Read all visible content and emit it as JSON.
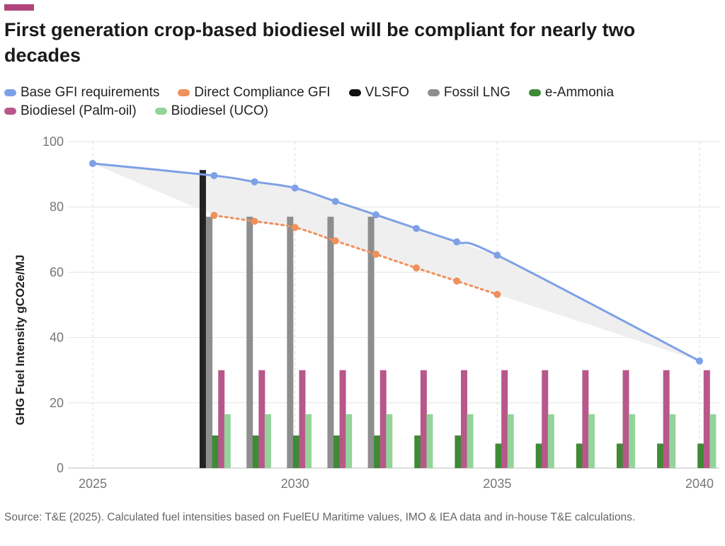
{
  "title": "First generation crop-based biodiesel will be compliant for nearly two decades",
  "source": "Source: T&E (2025). Calculated fuel intensities based on FuelEU Maritime values, IMO & IEA data and in-house T&E calculations.",
  "accent_color": "#b0447a",
  "legend": [
    {
      "label": "Base GFI requirements",
      "color": "#7ea0e6"
    },
    {
      "label": "Direct Compliance GFI",
      "color": "#f0905a"
    },
    {
      "label": "VLSFO",
      "color": "#111111"
    },
    {
      "label": "Fossil LNG",
      "color": "#8e8e8e"
    },
    {
      "label": "e-Ammonia",
      "color": "#3f8a35"
    },
    {
      "label": "Biodiesel (Palm-oil)",
      "color": "#b8588a"
    },
    {
      "label": "Biodiesel (UCO)",
      "color": "#92d49a"
    }
  ],
  "chart_data": {
    "type": "bar",
    "ylabel": "GHG Fuel Intensity gCO2e/MJ",
    "xlabel": "",
    "ylim": [
      0,
      100
    ],
    "yticks": [
      0,
      20,
      40,
      60,
      80,
      100
    ],
    "xlim": [
      2025,
      2040
    ],
    "xticks": [
      2025,
      2030,
      2035,
      2040
    ],
    "grid": true,
    "legend_position": "top",
    "lines": [
      {
        "name": "Base GFI requirements",
        "color": "#7ea0e6",
        "style": "solid",
        "x": [
          2025,
          2028,
          2029,
          2030,
          2031,
          2032,
          2033,
          2034,
          2035,
          2040
        ],
        "y": [
          93.3,
          89.6,
          87.7,
          85.8,
          81.7,
          77.6,
          73.4,
          69.3,
          65.2,
          32.8
        ],
        "markers_x": [
          2025,
          2028,
          2029,
          2030,
          2031,
          2032,
          2033,
          2034,
          2035,
          2040
        ]
      },
      {
        "name": "Direct Compliance GFI",
        "color": "#f0905a",
        "style": "dotted",
        "x": [
          2028,
          2029,
          2030,
          2031,
          2032,
          2033,
          2034,
          2035
        ],
        "y": [
          77.4,
          75.6,
          73.7,
          69.6,
          65.5,
          61.3,
          57.3,
          53.2
        ],
        "markers_x": [
          2028,
          2029,
          2030,
          2031,
          2032,
          2033,
          2034,
          2035
        ]
      }
    ],
    "band": {
      "color": "#ececec",
      "points": [
        [
          2025,
          93.3
        ],
        [
          2028,
          89.6
        ],
        [
          2029,
          87.7
        ],
        [
          2030,
          85.8
        ],
        [
          2031,
          81.7
        ],
        [
          2032,
          77.6
        ],
        [
          2033,
          73.4
        ],
        [
          2034,
          69.3
        ],
        [
          2035,
          65.2
        ],
        [
          2040,
          32.8
        ],
        [
          2035,
          53.2
        ],
        [
          2034,
          57.3
        ],
        [
          2033,
          61.3
        ],
        [
          2032,
          65.5
        ],
        [
          2031,
          69.6
        ],
        [
          2030,
          73.7
        ],
        [
          2029,
          75.6
        ],
        [
          2028,
          77.4
        ]
      ]
    },
    "series": [
      {
        "name": "VLSFO",
        "color": "#222222",
        "x": [
          2027.72
        ],
        "values": [
          91.3
        ]
      },
      {
        "name": "Fossil LNG",
        "color": "#8e8e8e",
        "x": [
          2027.88,
          2028.88,
          2029.88,
          2030.88,
          2031.88
        ],
        "values": [
          77,
          77,
          77,
          77,
          77
        ]
      },
      {
        "name": "e-Ammonia",
        "color": "#3f8a35",
        "x": [
          2028.03,
          2029.03,
          2030.03,
          2031.03,
          2032.03,
          2033.03,
          2034.03,
          2035.03,
          2036.03,
          2037.03,
          2038.03,
          2039.03,
          2040.03
        ],
        "values": [
          10,
          10,
          10,
          10,
          10,
          10,
          10,
          7.5,
          7.5,
          7.5,
          7.5,
          7.5,
          7.5
        ]
      },
      {
        "name": "Biodiesel (Palm-oil)",
        "color": "#b8588a",
        "x": [
          2028.18,
          2029.18,
          2030.18,
          2031.18,
          2032.18,
          2033.18,
          2034.18,
          2035.18,
          2036.18,
          2037.18,
          2038.18,
          2039.18,
          2040.18
        ],
        "values": [
          30,
          30,
          30,
          30,
          30,
          30,
          30,
          30,
          30,
          30,
          30,
          30,
          30
        ]
      },
      {
        "name": "Biodiesel (UCO)",
        "color": "#92d49a",
        "x": [
          2028.33,
          2029.33,
          2030.33,
          2031.33,
          2032.33,
          2033.33,
          2034.33,
          2035.33,
          2036.33,
          2037.33,
          2038.33,
          2039.33,
          2040.33
        ],
        "values": [
          16.5,
          16.5,
          16.5,
          16.5,
          16.5,
          16.5,
          16.5,
          16.5,
          16.5,
          16.5,
          16.5,
          16.5,
          16.5
        ]
      }
    ]
  }
}
